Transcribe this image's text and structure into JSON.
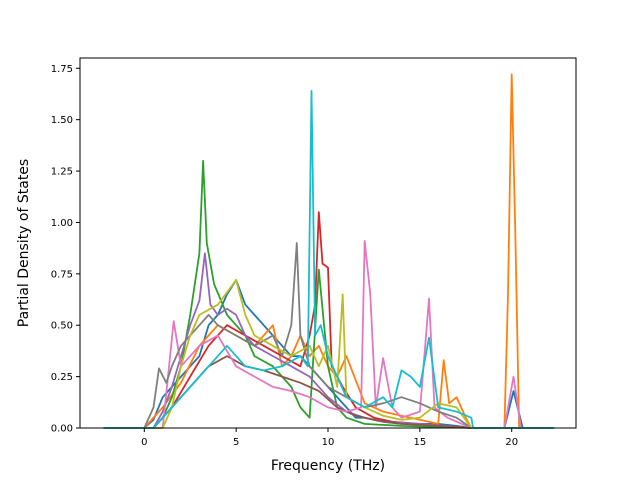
{
  "chart_data": {
    "type": "line",
    "xlabel": "Frequency (THz)",
    "ylabel": "Partial Density of States",
    "xlim": [
      -3.5,
      23.5
    ],
    "ylim": [
      0.0,
      1.8
    ],
    "xticks": [
      0,
      5,
      10,
      15,
      20
    ],
    "xtick_labels": [
      "0",
      "5",
      "10",
      "15",
      "20"
    ],
    "yticks": [
      0.0,
      0.25,
      0.5,
      0.75,
      1.0,
      1.25,
      1.5,
      1.75
    ],
    "ytick_labels": [
      "0.00",
      "0.25",
      "0.50",
      "0.75",
      "1.00",
      "1.25",
      "1.50",
      "1.75"
    ],
    "grid": false,
    "legend": "none",
    "series": [
      {
        "color": "#1f77b4",
        "points": [
          [
            -2.2,
            0
          ],
          [
            0,
            0
          ],
          [
            0.5,
            0.04
          ],
          [
            1,
            0.15
          ],
          [
            1.5,
            0.2
          ],
          [
            2,
            0.25
          ],
          [
            2.5,
            0.3
          ],
          [
            3,
            0.35
          ],
          [
            3.5,
            0.5
          ],
          [
            4,
            0.55
          ],
          [
            4.5,
            0.65
          ],
          [
            5,
            0.72
          ],
          [
            5.5,
            0.6
          ],
          [
            6,
            0.55
          ],
          [
            6.5,
            0.5
          ],
          [
            7,
            0.45
          ],
          [
            7.5,
            0.4
          ],
          [
            8,
            0.35
          ],
          [
            8.5,
            0.35
          ],
          [
            9,
            0.3
          ],
          [
            9.5,
            0.25
          ],
          [
            10,
            0.2
          ],
          [
            10.5,
            0.15
          ],
          [
            11,
            0.1
          ],
          [
            11.5,
            0.05
          ],
          [
            12,
            0.05
          ],
          [
            13,
            0.03
          ],
          [
            14,
            0.02
          ],
          [
            15,
            0.02
          ],
          [
            16,
            0.02
          ],
          [
            17,
            0.01
          ],
          [
            17.8,
            0
          ],
          [
            19.6,
            0
          ],
          [
            20.1,
            0.18
          ],
          [
            20.6,
            0
          ],
          [
            22.3,
            0
          ]
        ]
      },
      {
        "color": "#ff7f0e",
        "points": [
          [
            -2.2,
            0
          ],
          [
            0,
            0
          ],
          [
            1,
            0.1
          ],
          [
            2,
            0.22
          ],
          [
            3,
            0.4
          ],
          [
            3.5,
            0.45
          ],
          [
            4,
            0.5
          ],
          [
            5,
            0.45
          ],
          [
            6,
            0.4
          ],
          [
            7,
            0.5
          ],
          [
            7.5,
            0.3
          ],
          [
            8,
            0.35
          ],
          [
            8.5,
            0.45
          ],
          [
            9,
            0.35
          ],
          [
            9.5,
            0.4
          ],
          [
            10,
            0.3
          ],
          [
            10.5,
            0.25
          ],
          [
            11,
            0.35
          ],
          [
            12,
            0.12
          ],
          [
            13,
            0.08
          ],
          [
            14,
            0.06
          ],
          [
            15,
            0.04
          ],
          [
            16,
            0.02
          ],
          [
            16.3,
            0.33
          ],
          [
            16.6,
            0.12
          ],
          [
            17,
            0.15
          ],
          [
            17.5,
            0.05
          ],
          [
            17.8,
            0
          ],
          [
            19.6,
            0
          ],
          [
            19.8,
            0.65
          ],
          [
            20.0,
            1.72
          ],
          [
            20.2,
            0.93
          ],
          [
            20.4,
            0
          ],
          [
            22.3,
            0
          ]
        ]
      },
      {
        "color": "#2ca02c",
        "points": [
          [
            -2.2,
            0
          ],
          [
            0.5,
            0
          ],
          [
            1,
            0.05
          ],
          [
            1.5,
            0.15
          ],
          [
            2,
            0.3
          ],
          [
            2.5,
            0.55
          ],
          [
            3,
            0.85
          ],
          [
            3.2,
            1.3
          ],
          [
            3.4,
            0.9
          ],
          [
            3.8,
            0.7
          ],
          [
            4.5,
            0.55
          ],
          [
            5,
            0.5
          ],
          [
            5.5,
            0.45
          ],
          [
            6,
            0.35
          ],
          [
            7,
            0.3
          ],
          [
            8,
            0.2
          ],
          [
            8.5,
            0.1
          ],
          [
            9,
            0.05
          ],
          [
            9.5,
            0.77
          ],
          [
            10,
            0.3
          ],
          [
            10.5,
            0.1
          ],
          [
            11,
            0.05
          ],
          [
            12,
            0.02
          ],
          [
            14,
            0.01
          ],
          [
            17.8,
            0
          ],
          [
            22.3,
            0
          ]
        ]
      },
      {
        "color": "#d62728",
        "points": [
          [
            -2.2,
            0
          ],
          [
            0.5,
            0
          ],
          [
            1.5,
            0.1
          ],
          [
            2.5,
            0.25
          ],
          [
            3.5,
            0.4
          ],
          [
            4.5,
            0.5
          ],
          [
            5.5,
            0.45
          ],
          [
            6.5,
            0.4
          ],
          [
            7.5,
            0.35
          ],
          [
            8.5,
            0.3
          ],
          [
            9,
            0.45
          ],
          [
            9.3,
            0.6
          ],
          [
            9.5,
            1.05
          ],
          [
            9.7,
            0.8
          ],
          [
            10,
            0.78
          ],
          [
            10.2,
            0.3
          ],
          [
            10.8,
            0.2
          ],
          [
            11.5,
            0.1
          ],
          [
            12.5,
            0.05
          ],
          [
            13.5,
            0.03
          ],
          [
            15,
            0.02
          ],
          [
            17.8,
            0
          ],
          [
            22.3,
            0
          ]
        ]
      },
      {
        "color": "#9467bd",
        "points": [
          [
            -2.2,
            0
          ],
          [
            0.5,
            0
          ],
          [
            1,
            0.08
          ],
          [
            1.5,
            0.2
          ],
          [
            2,
            0.35
          ],
          [
            2.5,
            0.5
          ],
          [
            3,
            0.62
          ],
          [
            3.3,
            0.85
          ],
          [
            3.6,
            0.6
          ],
          [
            4,
            0.55
          ],
          [
            4.5,
            0.58
          ],
          [
            5,
            0.55
          ],
          [
            5.5,
            0.45
          ],
          [
            6,
            0.4
          ],
          [
            7,
            0.35
          ],
          [
            8,
            0.3
          ],
          [
            9,
            0.25
          ],
          [
            10,
            0.15
          ],
          [
            11,
            0.08
          ],
          [
            12,
            0.05
          ],
          [
            13,
            0.03
          ],
          [
            15,
            0.02
          ],
          [
            17.8,
            0
          ],
          [
            22.3,
            0
          ]
        ]
      },
      {
        "color": "#8c564b",
        "points": [
          [
            -2.2,
            0
          ],
          [
            0.5,
            0
          ],
          [
            1.5,
            0.1
          ],
          [
            2.5,
            0.2
          ],
          [
            3.5,
            0.3
          ],
          [
            4.5,
            0.35
          ],
          [
            5.5,
            0.3
          ],
          [
            6.5,
            0.28
          ],
          [
            7.5,
            0.25
          ],
          [
            8.5,
            0.22
          ],
          [
            9.5,
            0.18
          ],
          [
            10.5,
            0.1
          ],
          [
            11.5,
            0.06
          ],
          [
            12.5,
            0.04
          ],
          [
            14,
            0.02
          ],
          [
            16,
            0.01
          ],
          [
            17.8,
            0
          ],
          [
            22.3,
            0
          ]
        ]
      },
      {
        "color": "#e377c2",
        "points": [
          [
            -2.2,
            0
          ],
          [
            1,
            0
          ],
          [
            1.6,
            0.52
          ],
          [
            2,
            0.3
          ],
          [
            3,
            0.4
          ],
          [
            4,
            0.45
          ],
          [
            5,
            0.3
          ],
          [
            6,
            0.25
          ],
          [
            7,
            0.2
          ],
          [
            8,
            0.18
          ],
          [
            9,
            0.15
          ],
          [
            10,
            0.1
          ],
          [
            11,
            0.08
          ],
          [
            11.8,
            0.1
          ],
          [
            12.0,
            0.91
          ],
          [
            12.3,
            0.65
          ],
          [
            12.6,
            0.1
          ],
          [
            13,
            0.34
          ],
          [
            13.5,
            0.1
          ],
          [
            14,
            0.05
          ],
          [
            15,
            0.08
          ],
          [
            15.5,
            0.63
          ],
          [
            15.8,
            0.1
          ],
          [
            16.5,
            0.05
          ],
          [
            17.8,
            0
          ],
          [
            19.6,
            0
          ],
          [
            20.1,
            0.25
          ],
          [
            20.5,
            0
          ],
          [
            22.3,
            0
          ]
        ]
      },
      {
        "color": "#7f7f7f",
        "points": [
          [
            -2.2,
            0
          ],
          [
            0,
            0
          ],
          [
            0.5,
            0.1
          ],
          [
            0.8,
            0.29
          ],
          [
            1.2,
            0.22
          ],
          [
            1.5,
            0.3
          ],
          [
            2,
            0.4
          ],
          [
            2.5,
            0.45
          ],
          [
            3,
            0.5
          ],
          [
            3.5,
            0.55
          ],
          [
            4,
            0.5
          ],
          [
            5,
            0.45
          ],
          [
            6,
            0.4
          ],
          [
            7,
            0.45
          ],
          [
            7.5,
            0.35
          ],
          [
            8,
            0.5
          ],
          [
            8.3,
            0.9
          ],
          [
            8.5,
            0.45
          ],
          [
            9,
            0.3
          ],
          [
            10,
            0.2
          ],
          [
            11,
            0.15
          ],
          [
            12,
            0.1
          ],
          [
            13,
            0.12
          ],
          [
            14,
            0.15
          ],
          [
            15,
            0.12
          ],
          [
            16,
            0.08
          ],
          [
            17,
            0.05
          ],
          [
            17.8,
            0
          ],
          [
            22.3,
            0
          ]
        ]
      },
      {
        "color": "#bcbd22",
        "points": [
          [
            -2.2,
            0
          ],
          [
            1,
            0
          ],
          [
            1.5,
            0.1
          ],
          [
            2,
            0.3
          ],
          [
            2.5,
            0.45
          ],
          [
            3,
            0.55
          ],
          [
            4,
            0.6
          ],
          [
            5,
            0.72
          ],
          [
            5.5,
            0.55
          ],
          [
            6,
            0.45
          ],
          [
            7,
            0.4
          ],
          [
            8,
            0.35
          ],
          [
            9,
            0.4
          ],
          [
            9.5,
            0.3
          ],
          [
            10,
            0.4
          ],
          [
            10.5,
            0.2
          ],
          [
            10.8,
            0.65
          ],
          [
            11,
            0.15
          ],
          [
            12,
            0.1
          ],
          [
            13,
            0.06
          ],
          [
            14,
            0.04
          ],
          [
            15,
            0.05
          ],
          [
            16,
            0.12
          ],
          [
            17,
            0.1
          ],
          [
            17.8,
            0
          ],
          [
            22.3,
            0
          ]
        ]
      },
      {
        "color": "#17becf",
        "points": [
          [
            -2.2,
            0
          ],
          [
            0.5,
            0
          ],
          [
            1.5,
            0.1
          ],
          [
            2.5,
            0.2
          ],
          [
            3.5,
            0.3
          ],
          [
            4.5,
            0.4
          ],
          [
            5.5,
            0.3
          ],
          [
            6.5,
            0.28
          ],
          [
            7.5,
            0.3
          ],
          [
            8.5,
            0.35
          ],
          [
            8.9,
            0.3
          ],
          [
            9.1,
            1.64
          ],
          [
            9.3,
            0.45
          ],
          [
            9.6,
            0.5
          ],
          [
            10,
            0.35
          ],
          [
            11,
            0.15
          ],
          [
            12,
            0.1
          ],
          [
            13,
            0.15
          ],
          [
            13.5,
            0.1
          ],
          [
            14,
            0.28
          ],
          [
            14.5,
            0.25
          ],
          [
            15,
            0.2
          ],
          [
            15.5,
            0.44
          ],
          [
            16,
            0.1
          ],
          [
            17,
            0.08
          ],
          [
            17.8,
            0.05
          ],
          [
            17.9,
            0
          ],
          [
            22.3,
            0
          ]
        ]
      }
    ]
  }
}
